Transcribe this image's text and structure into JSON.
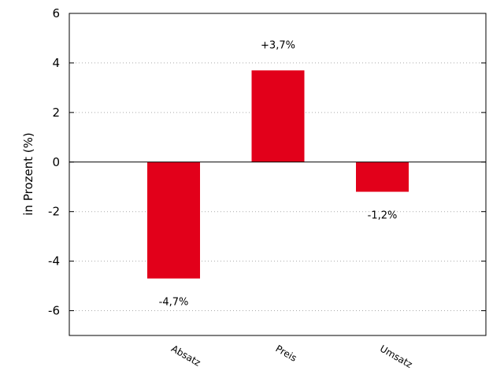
{
  "chart_data": {
    "type": "bar",
    "title": "",
    "xlabel": "",
    "ylabel": "in Prozent (%)",
    "categories": [
      "Absatz",
      "Preis",
      "Umsatz"
    ],
    "values": [
      -4.7,
      3.7,
      -1.2
    ],
    "data_labels": [
      "-4,7%",
      "+3,7%",
      "-1,2%"
    ],
    "ylim": [
      -7,
      6
    ],
    "yticks": [
      6,
      4,
      2,
      0,
      -2,
      -4,
      -6
    ],
    "ytick_labels": [
      "6",
      "4",
      "2",
      "0",
      "-2",
      "-4",
      "-6"
    ],
    "grid": true,
    "legend": "none",
    "bar_color": "#e2001a"
  }
}
